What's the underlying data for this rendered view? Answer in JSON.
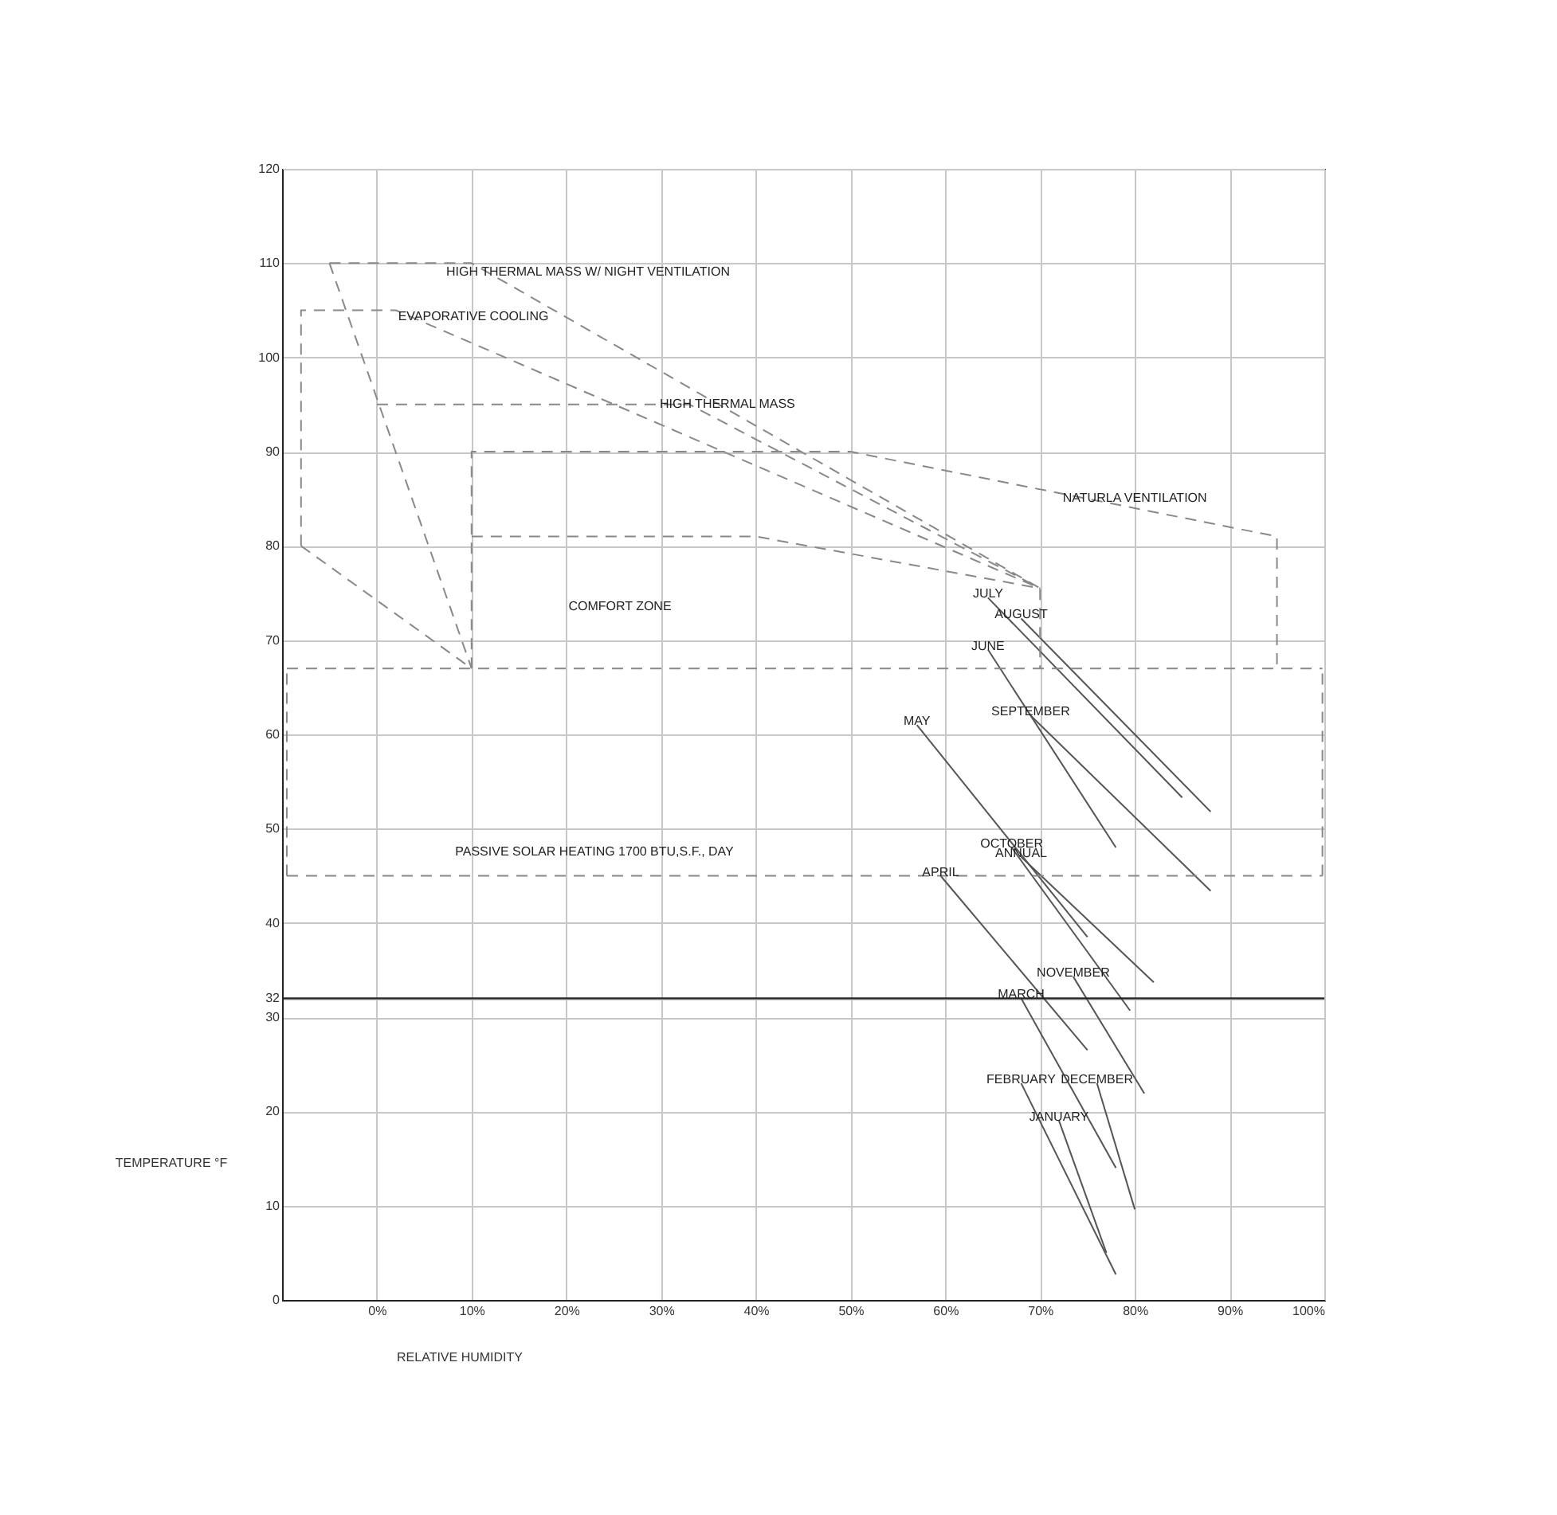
{
  "chart_data": {
    "type": "line",
    "xlabel": "RELATIVE HUMIDITY",
    "ylabel": "TEMPERATURE °F",
    "xlim": [
      -10,
      100
    ],
    "ylim": [
      0,
      120
    ],
    "xticks": [
      {
        "value": 0,
        "label": "0%"
      },
      {
        "value": 10,
        "label": "10%"
      },
      {
        "value": 20,
        "label": "20%"
      },
      {
        "value": 30,
        "label": "30%"
      },
      {
        "value": 40,
        "label": "40%"
      },
      {
        "value": 50,
        "label": "50%"
      },
      {
        "value": 60,
        "label": "60%"
      },
      {
        "value": 70,
        "label": "70%"
      },
      {
        "value": 80,
        "label": "80%"
      },
      {
        "value": 90,
        "label": "90%"
      },
      {
        "value": 100,
        "label": "100%"
      }
    ],
    "yticks": [
      0,
      10,
      20,
      30,
      32,
      40,
      50,
      60,
      70,
      80,
      90,
      100,
      110,
      120
    ],
    "grid": true,
    "legend": false,
    "marker": "none",
    "ref_lines": [
      {
        "axis": "y",
        "value": 32,
        "color": "#222222",
        "line_style": "solid"
      }
    ],
    "annotations": [
      "HIGH THERMAL MASS W/ NIGHT VENTILATION",
      "EVAPORATIVE COOLING",
      {
        "text": "HIGH THERMAL MASS",
        "x": 37,
        "y": 95
      },
      {
        "text": "NATURLA VENTILATION",
        "x": 80,
        "y": 85
      },
      "COMFORT ZONE",
      "PASSIVE SOLAR HEATING 1700 BTU,S.F., DAY"
    ],
    "series": [
      {
        "color": "#888888",
        "line_style": "dashed",
        "x": [
          -5,
          10,
          70
        ],
        "values": [
          110,
          110,
          75.5
        ]
      },
      {
        "color": "#888888",
        "line_style": "dashed",
        "x": [
          -5,
          10
        ],
        "values": [
          110,
          67
        ]
      },
      {
        "color": "#888888",
        "line_style": "dashed",
        "x": [
          -8,
          -8,
          2,
          70
        ],
        "values": [
          80,
          105,
          105,
          75.5
        ]
      },
      {
        "color": "#888888",
        "line_style": "dashed",
        "x": [
          -8,
          10
        ],
        "values": [
          80,
          67
        ]
      },
      {
        "color": "#888888",
        "line_style": "dashed",
        "x": [
          0,
          33,
          70
        ],
        "values": [
          95,
          95,
          75.5
        ]
      },
      {
        "color": "#888888",
        "line_style": "dashed",
        "x": [
          10,
          10,
          50,
          95,
          95
        ],
        "values": [
          67,
          90,
          90,
          81,
          67
        ]
      },
      {
        "color": "#888888",
        "line_style": "dashed",
        "x": [
          10,
          40,
          70,
          70
        ],
        "values": [
          81,
          81,
          75.5,
          67
        ]
      },
      {
        "color": "#888888",
        "line_style": "dashed",
        "x": [
          -9.5,
          99.8
        ],
        "values": [
          67,
          67
        ]
      },
      {
        "color": "#888888",
        "line_style": "dashed",
        "x": [
          -9.5,
          99.8
        ],
        "values": [
          45,
          45
        ]
      },
      {
        "color": "#888888",
        "line_style": "dashed",
        "x": [
          -9.5,
          -9.5
        ],
        "values": [
          45,
          67
        ]
      },
      {
        "color": "#888888",
        "line_style": "dashed",
        "x": [
          99.8,
          99.8
        ],
        "values": [
          45,
          67
        ]
      },
      {
        "name": "JANUARY",
        "color": "#555555",
        "line_style": "solid",
        "x": [
          72,
          77
        ],
        "values": [
          19,
          5
        ]
      },
      {
        "name": "FEBRUARY",
        "color": "#555555",
        "line_style": "solid",
        "x": [
          68,
          78
        ],
        "values": [
          23,
          2.7
        ]
      },
      {
        "name": "MARCH",
        "color": "#555555",
        "line_style": "solid",
        "x": [
          68,
          78
        ],
        "values": [
          32,
          14
        ]
      },
      {
        "name": "APRIL",
        "color": "#555555",
        "line_style": "solid",
        "x": [
          59.5,
          75
        ],
        "values": [
          45,
          26.5
        ]
      },
      {
        "name": "MAY",
        "color": "#555555",
        "line_style": "solid",
        "x": [
          57,
          75
        ],
        "values": [
          61,
          38.5
        ]
      },
      {
        "name": "JUNE",
        "color": "#555555",
        "line_style": "solid",
        "x": [
          64.5,
          78
        ],
        "values": [
          69,
          48
        ]
      },
      {
        "name": "JULY",
        "color": "#555555",
        "line_style": "solid",
        "x": [
          64.5,
          85
        ],
        "values": [
          74.5,
          53.3
        ]
      },
      {
        "name": "AUGUST",
        "color": "#555555",
        "line_style": "solid",
        "x": [
          68,
          88
        ],
        "values": [
          72.3,
          51.8
        ]
      },
      {
        "name": "SEPTEMBER",
        "color": "#555555",
        "line_style": "solid",
        "x": [
          69,
          88
        ],
        "values": [
          62,
          43.4
        ]
      },
      {
        "name": "OCTOBER",
        "color": "#555555",
        "line_style": "solid",
        "x": [
          67,
          79.5
        ],
        "values": [
          48,
          30.7
        ]
      },
      {
        "name": "NOVEMBER",
        "color": "#555555",
        "line_style": "solid",
        "x": [
          73.5,
          81
        ],
        "values": [
          34.3,
          21.9
        ]
      },
      {
        "name": "DECEMBER",
        "color": "#555555",
        "line_style": "solid",
        "x": [
          76,
          80
        ],
        "values": [
          23,
          9.6
        ]
      },
      {
        "name": "ANNUAL",
        "color": "#555555",
        "line_style": "solid",
        "x": [
          68,
          82
        ],
        "values": [
          47,
          33.7
        ]
      }
    ]
  }
}
